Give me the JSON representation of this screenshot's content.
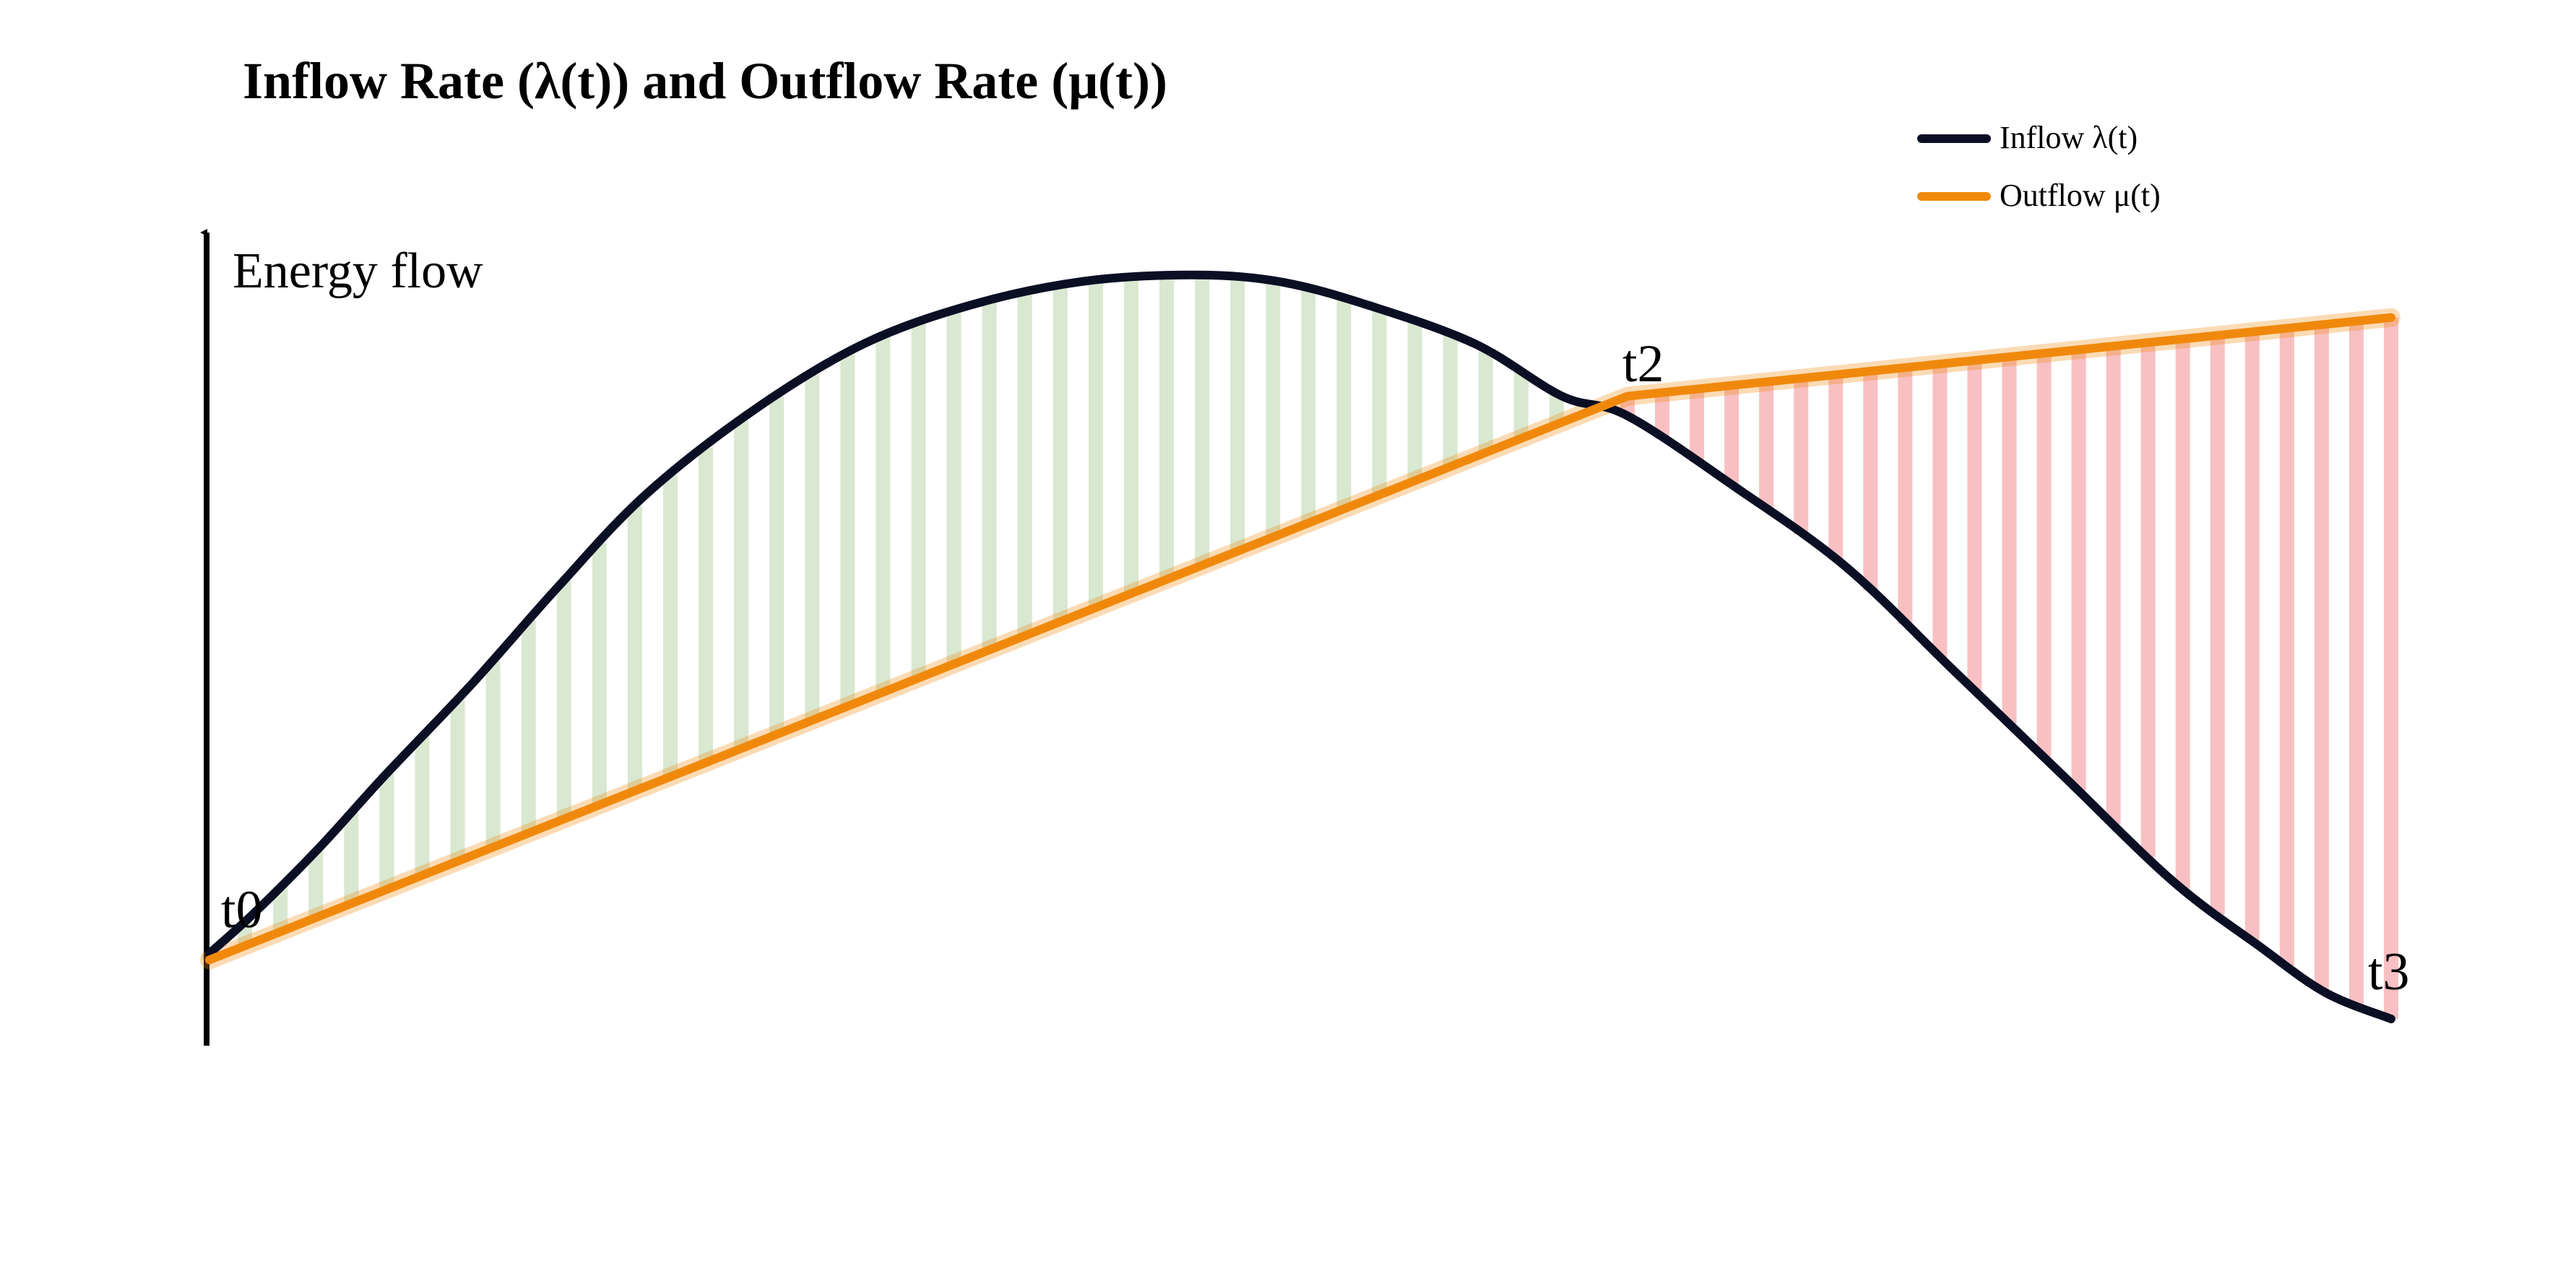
{
  "chart_data": {
    "type": "line",
    "title": "Inflow Rate (λ(t)) and Outflow Rate (μ(t))",
    "ylabel": "Energy flow",
    "xlabel": "",
    "x_markers": [
      "t0",
      "t2",
      "t3"
    ],
    "legend_position": "top-right",
    "grid": false,
    "series": [
      {
        "name": "Inflow λ(t)",
        "color": "#0b0f24",
        "x": [
          0,
          0.02,
          0.05,
          0.08,
          0.12,
          0.16,
          0.2,
          0.25,
          0.3,
          0.35,
          0.4,
          0.45,
          0.49,
          0.53,
          0.58,
          0.62,
          0.65,
          0.7,
          0.75,
          0.8,
          0.85,
          0.9,
          0.94,
          0.97,
          1.0
        ],
        "y": [
          0.01,
          0.07,
          0.17,
          0.28,
          0.42,
          0.57,
          0.71,
          0.84,
          0.94,
          1.0,
          1.035,
          1.045,
          1.035,
          1.0,
          0.94,
          0.86,
          0.83,
          0.72,
          0.6,
          0.44,
          0.28,
          0.12,
          0.02,
          -0.05,
          -0.09
        ]
      },
      {
        "name": "Outflow μ(t)",
        "color": "#f0890b",
        "x": [
          0,
          0.65,
          1.0
        ],
        "y": [
          0,
          0.86,
          0.98
        ]
      }
    ],
    "shading": [
      {
        "between": "inflow-above-outflow",
        "x_range": [
          0,
          0.65
        ],
        "color": "#d9e8d1"
      },
      {
        "between": "outflow-above-inflow",
        "x_range": [
          0.65,
          1.0
        ],
        "color": "#f8c0c2"
      }
    ],
    "xlim": [
      0,
      1
    ],
    "ylim": [
      -0.1,
      1.2
    ]
  }
}
